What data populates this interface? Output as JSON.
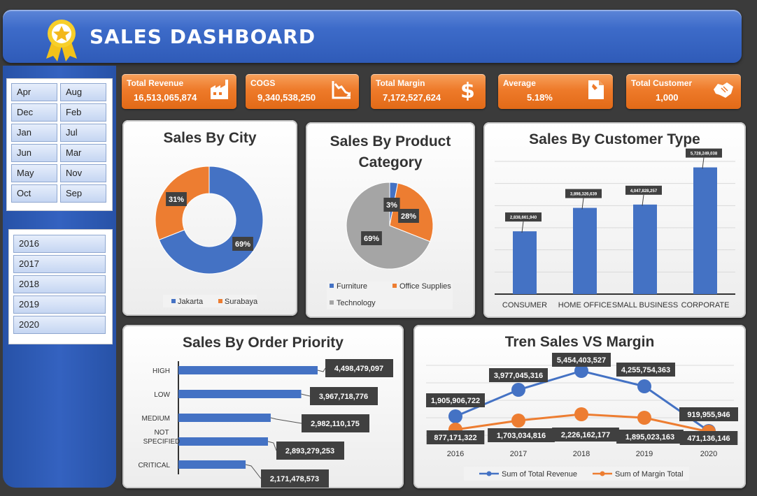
{
  "header": {
    "title": "SALES DASHBOARD"
  },
  "colors": {
    "blue": "#4472C4",
    "orange": "#ED7D31",
    "gray": "#A5A5A5"
  },
  "slicers": {
    "months": [
      "Apr",
      "Aug",
      "Dec",
      "Feb",
      "Jan",
      "Jul",
      "Jun",
      "Mar",
      "May",
      "Nov",
      "Oct",
      "Sep"
    ],
    "years": [
      "2016",
      "2017",
      "2018",
      "2019",
      "2020"
    ]
  },
  "kpis": [
    {
      "label": "Total Revenue",
      "value": "16,513,065,874",
      "icon": "factory-icon"
    },
    {
      "label": "COGS",
      "value": "9,340,538,250",
      "icon": "chart-down-icon"
    },
    {
      "label": "Total Margin",
      "value": "7,172,527,624",
      "icon": "dollar-icon"
    },
    {
      "label": "Average",
      "value": "5.18%",
      "icon": "document-icon"
    },
    {
      "label": "Total Customer",
      "value": "1,000",
      "icon": "handshake-icon"
    }
  ],
  "charts": {
    "city": {
      "title": "Sales By City"
    },
    "category": {
      "title": "Sales By Product Category"
    },
    "customer": {
      "title": "Sales By Customer Type"
    },
    "priority": {
      "title": "Sales By Order Priority"
    },
    "trend": {
      "title": "Tren Sales VS Margin"
    }
  },
  "chart_data": [
    {
      "type": "pie",
      "variant": "donut",
      "title": "Sales By City",
      "categories": [
        "Jakarta",
        "Surabaya"
      ],
      "values": [
        69,
        31
      ],
      "labels": [
        "69%",
        "31%"
      ],
      "legend": "bottom"
    },
    {
      "type": "pie",
      "title": "Sales By Product Category",
      "categories": [
        "Furniture",
        "Office Supplies",
        "Technology"
      ],
      "values": [
        3,
        28,
        69
      ],
      "labels": [
        "3%",
        "28%",
        "69%"
      ],
      "legend": "bottom"
    },
    {
      "type": "bar",
      "title": "Sales By Customer Type",
      "categories": [
        "CONSUMER",
        "HOME OFFICE",
        "SMALL BUSINESS",
        "CORPORATE"
      ],
      "values": [
        2838661940,
        3898326639,
        4047828257,
        5728249038
      ],
      "labels": [
        "2,838,661,940",
        "3,898,326,639",
        "4,047,828,257",
        "5,728,249,038"
      ]
    },
    {
      "type": "bar",
      "orientation": "horizontal",
      "title": "Sales By Order Priority",
      "categories": [
        "HIGH",
        "LOW",
        "MEDIUM",
        "NOT SPECIFIED",
        "CRITICAL"
      ],
      "values": [
        4498479097,
        3967718776,
        2982110175,
        2893279253,
        2171478573
      ],
      "labels": [
        "4,498,479,097",
        "3,967,718,776",
        "2,982,110,175",
        "2,893,279,253",
        "2,171,478,573"
      ]
    },
    {
      "type": "line",
      "title": "Tren Sales VS Margin",
      "x": [
        "2016",
        "2017",
        "2018",
        "2019",
        "2020"
      ],
      "series": [
        {
          "name": "Sum of Total Revenue",
          "values": [
            1905906722,
            3977045316,
            5454403527,
            4255754363,
            919955946
          ],
          "labels": [
            "1,905,906,722",
            "3,977,045,316",
            "5,454,403,527",
            "4,255,754,363",
            "919,955,946"
          ]
        },
        {
          "name": "Sum of Margin Total",
          "values": [
            877171322,
            1703034816,
            2226162177,
            1895023163,
            471136146
          ],
          "labels": [
            "877,171,322",
            "1,703,034,816",
            "2,226,162,177",
            "1,895,023,163",
            "471,136,146"
          ]
        }
      ],
      "legend": "bottom"
    }
  ]
}
